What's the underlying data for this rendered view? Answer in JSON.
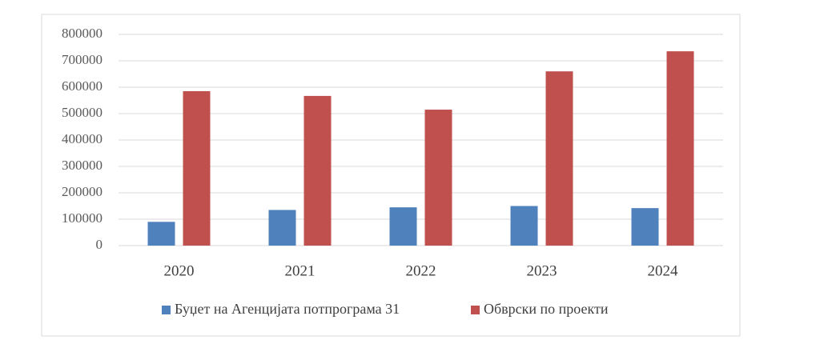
{
  "chart_data": {
    "type": "bar",
    "categories": [
      "2020",
      "2021",
      "2022",
      "2023",
      "2024"
    ],
    "series": [
      {
        "name": "Буџет на Агенцијата потпрограма 31",
        "color": "#4f81bd",
        "values": [
          90000,
          135000,
          145000,
          150000,
          142000
        ]
      },
      {
        "name": "Обврски по проекти",
        "color": "#c0504d",
        "values": [
          585000,
          567000,
          515000,
          660000,
          736000
        ]
      }
    ],
    "ylim": [
      0,
      800000
    ],
    "yticks": [
      0,
      100000,
      200000,
      300000,
      400000,
      500000,
      600000,
      700000,
      800000
    ],
    "grid": true,
    "legend": "bottom"
  }
}
